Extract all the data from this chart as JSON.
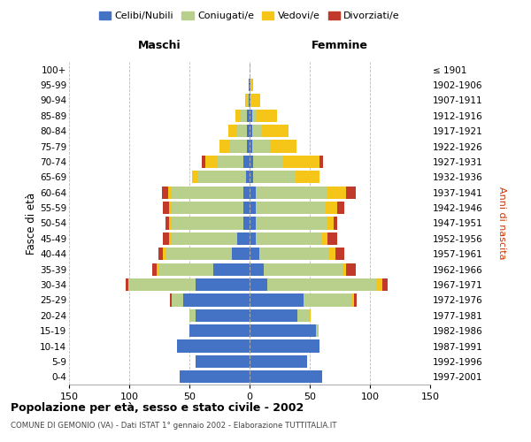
{
  "age_groups": [
    "0-4",
    "5-9",
    "10-14",
    "15-19",
    "20-24",
    "25-29",
    "30-34",
    "35-39",
    "40-44",
    "45-49",
    "50-54",
    "55-59",
    "60-64",
    "65-69",
    "70-74",
    "75-79",
    "80-84",
    "85-89",
    "90-94",
    "95-99",
    "100+"
  ],
  "birth_years": [
    "1997-2001",
    "1992-1996",
    "1987-1991",
    "1982-1986",
    "1977-1981",
    "1972-1976",
    "1967-1971",
    "1962-1966",
    "1957-1961",
    "1952-1956",
    "1947-1951",
    "1942-1946",
    "1937-1941",
    "1932-1936",
    "1927-1931",
    "1922-1926",
    "1917-1921",
    "1912-1916",
    "1907-1911",
    "1902-1906",
    "≤ 1901"
  ],
  "males": {
    "celibi": [
      58,
      45,
      60,
      50,
      45,
      55,
      45,
      30,
      15,
      10,
      5,
      5,
      5,
      3,
      5,
      2,
      2,
      2,
      1,
      1,
      0
    ],
    "coniugati": [
      0,
      0,
      0,
      0,
      5,
      10,
      55,
      45,
      55,
      55,
      60,
      60,
      60,
      40,
      22,
      15,
      8,
      5,
      1,
      0,
      0
    ],
    "vedovi": [
      0,
      0,
      0,
      0,
      0,
      0,
      1,
      2,
      2,
      2,
      2,
      2,
      3,
      5,
      10,
      8,
      8,
      5,
      2,
      0,
      0
    ],
    "divorziati": [
      0,
      0,
      0,
      0,
      0,
      1,
      2,
      4,
      4,
      5,
      3,
      5,
      5,
      0,
      3,
      0,
      0,
      0,
      0,
      0,
      0
    ]
  },
  "females": {
    "nubili": [
      60,
      48,
      58,
      55,
      40,
      45,
      15,
      12,
      8,
      5,
      5,
      5,
      5,
      3,
      3,
      2,
      2,
      2,
      1,
      1,
      0
    ],
    "coniugate": [
      0,
      0,
      0,
      2,
      10,
      40,
      90,
      65,
      58,
      55,
      60,
      58,
      60,
      35,
      25,
      15,
      8,
      3,
      0,
      0,
      0
    ],
    "vedove": [
      0,
      0,
      0,
      0,
      1,
      2,
      5,
      3,
      5,
      5,
      5,
      10,
      15,
      20,
      30,
      22,
      22,
      18,
      8,
      2,
      0
    ],
    "divorziate": [
      0,
      0,
      0,
      0,
      0,
      2,
      5,
      8,
      8,
      8,
      3,
      6,
      8,
      0,
      3,
      0,
      0,
      0,
      0,
      0,
      0
    ]
  },
  "colors": {
    "celibi": "#4472c4",
    "coniugati": "#b8d08c",
    "vedovi": "#f5c518",
    "divorziati": "#c0392b"
  },
  "xlim": 150,
  "title": "Popolazione per età, sesso e stato civile - 2002",
  "subtitle": "COMUNE DI GEMONIO (VA) - Dati ISTAT 1° gennaio 2002 - Elaborazione TUTTITALIA.IT",
  "ylabel_left": "Fasce di età",
  "ylabel_right": "Anni di nascita",
  "xlabel_left": "Maschi",
  "xlabel_right": "Femmine",
  "legend_labels": [
    "Celibi/Nubili",
    "Coniugati/e",
    "Vedovi/e",
    "Divorziati/e"
  ],
  "bg_color": "#ffffff",
  "grid_color": "#bbbbbb"
}
